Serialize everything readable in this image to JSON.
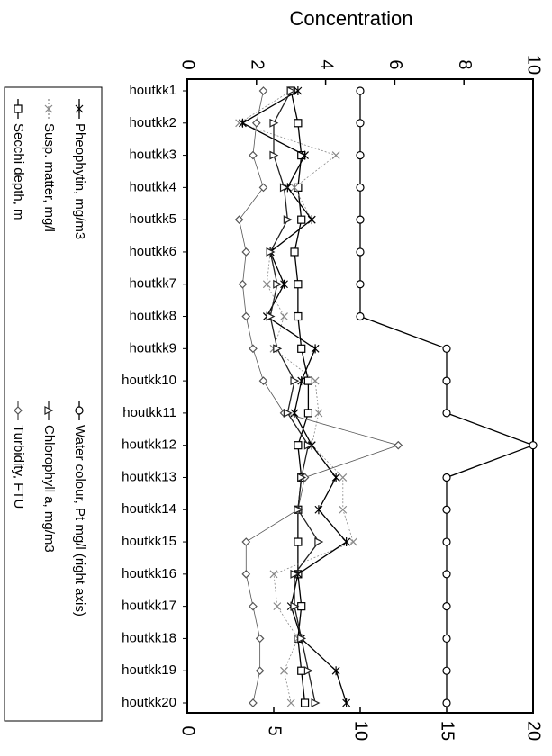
{
  "chart_data": {
    "type": "line",
    "title": "Concentration",
    "categories": [
      "houtkk1",
      "houtkk2",
      "houtkk3",
      "houtkk4",
      "houtkk5",
      "houtkk6",
      "houtkk7",
      "houtkk8",
      "houtkk9",
      "houtkk10",
      "houtkk11",
      "houtkk12",
      "houtkk13",
      "houtkk14",
      "houtkk15",
      "houtkk16",
      "houtkk17",
      "houtkk18",
      "houtkk19",
      "houtkk20"
    ],
    "series": [
      {
        "name": "Secchi depth, m",
        "color": "#000000",
        "marker": "square",
        "values": [
          3.0,
          3.2,
          3.3,
          3.2,
          3.3,
          3.1,
          3.2,
          3.2,
          3.3,
          3.5,
          3.5,
          3.2,
          3.3,
          3.2,
          3.2,
          3.2,
          3.3,
          3.2,
          3.3,
          3.4
        ]
      },
      {
        "name": "Susp. matter, mg/l",
        "color": "#888888",
        "marker": "x",
        "values": [
          3.0,
          1.5,
          4.3,
          3.1,
          3.6,
          2.4,
          2.3,
          2.8,
          2.5,
          3.7,
          3.8,
          3.6,
          4.5,
          4.5,
          4.8,
          2.5,
          2.6,
          3.2,
          2.8,
          3.0
        ]
      },
      {
        "name": "Pheophytin, mg/m3",
        "color": "#000000",
        "marker": "asterisk",
        "values": [
          3.2,
          1.6,
          3.4,
          2.9,
          3.6,
          2.4,
          2.8,
          2.3,
          3.7,
          3.3,
          3.1,
          3.6,
          4.3,
          3.8,
          4.6,
          3.2,
          3.0,
          3.3,
          4.3,
          4.6
        ]
      },
      {
        "name": "Turbidity, FTU",
        "color": "#555555",
        "marker": "diamond",
        "values": [
          2.2,
          2.0,
          1.9,
          2.2,
          1.5,
          1.7,
          1.6,
          1.7,
          1.9,
          2.2,
          2.8,
          6.1,
          3.4,
          3.2,
          1.7,
          1.7,
          1.9,
          2.1,
          2.1,
          1.9
        ]
      },
      {
        "name": "Chlorophyll a, mg/m3",
        "color": "#222222",
        "marker": "triangle",
        "values": [
          3.0,
          2.5,
          2.5,
          2.8,
          2.9,
          2.4,
          2.6,
          2.4,
          2.6,
          3.1,
          2.9,
          3.5,
          3.3,
          3.2,
          3.8,
          3.1,
          3.1,
          3.3,
          3.5,
          3.7
        ]
      },
      {
        "name": "Water colour, Pt mg/l (right axis)",
        "color": "#000000",
        "marker": "circle",
        "axis": "y2",
        "values": [
          10,
          10,
          10,
          10,
          10,
          10,
          10,
          10,
          15,
          15,
          15,
          20,
          15,
          15,
          15,
          15,
          15,
          15,
          15,
          15
        ]
      }
    ],
    "ylim": [
      0,
      10
    ],
    "yticks": [
      0,
      2,
      4,
      6,
      8,
      10
    ],
    "y2lim": [
      0,
      20
    ],
    "y2ticks": [
      0,
      5,
      10,
      15,
      20
    ],
    "grid": false
  }
}
